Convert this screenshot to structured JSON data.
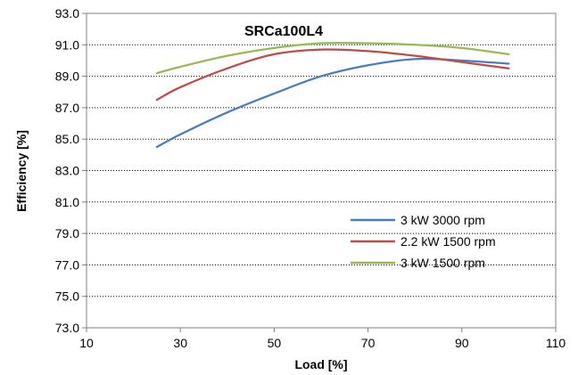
{
  "chart_data": {
    "type": "line",
    "title": "SRCa100L4",
    "xlabel": "Load [%]",
    "ylabel": "Efficiency [%]",
    "xlim": [
      10,
      110
    ],
    "ylim": [
      73.0,
      93.0
    ],
    "xticks": [
      "10",
      "30",
      "50",
      "70",
      "90",
      "110"
    ],
    "yticks": [
      "73.0",
      "75.0",
      "77.0",
      "79.0",
      "81.0",
      "83.0",
      "85.0",
      "87.0",
      "89.0",
      "91.0",
      "93.0"
    ],
    "grid": "horizontal dotted",
    "legend_position": "bottom-right",
    "series": [
      {
        "name": "3 kW 3000 rpm",
        "color": "#4a7ebb",
        "x": [
          25,
          30,
          40,
          50,
          60,
          70,
          80,
          90,
          100
        ],
        "y": [
          84.5,
          85.3,
          86.7,
          87.9,
          89.0,
          89.7,
          90.1,
          90.0,
          89.8
        ]
      },
      {
        "name": "2.2 kW 1500 rpm",
        "color": "#be4b48",
        "x": [
          25,
          30,
          40,
          50,
          60,
          70,
          80,
          90,
          100
        ],
        "y": [
          87.5,
          88.3,
          89.5,
          90.4,
          90.7,
          90.6,
          90.3,
          89.9,
          89.5
        ]
      },
      {
        "name": "3 kW 1500 rpm",
        "color": "#98b954",
        "x": [
          25,
          30,
          40,
          50,
          60,
          70,
          80,
          90,
          100
        ],
        "y": [
          89.2,
          89.6,
          90.3,
          90.8,
          91.1,
          91.1,
          91.0,
          90.8,
          90.4
        ]
      }
    ]
  }
}
